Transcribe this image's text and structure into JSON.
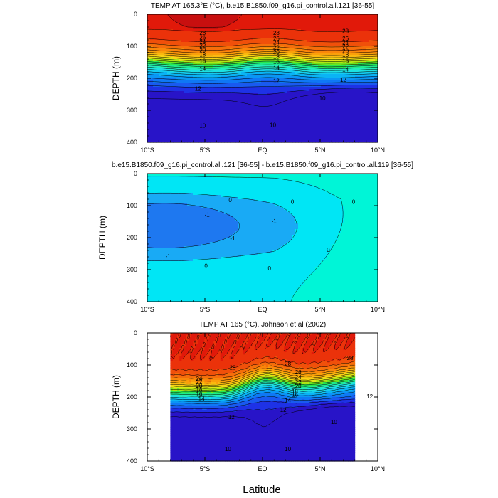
{
  "figure": {
    "xlabel": "Latitude"
  },
  "chart_data": [
    {
      "type": "heatmap",
      "title": "TEMP AT 165.3°E (°C), b.e15.B1850.f09_g16.pi_control.all.121 [36-55]",
      "xlabel": "",
      "ylabel": "DEPTH (m)",
      "x_ticks": [
        "10°S",
        "5°S",
        "EQ",
        "5°N",
        "10°N"
      ],
      "x_tick_values": [
        -10,
        -5,
        0,
        5,
        10
      ],
      "y_ticks": [
        "0",
        "100",
        "200",
        "300",
        "400"
      ],
      "y_tick_values": [
        0,
        100,
        200,
        300,
        400
      ],
      "xlim": [
        -10,
        10
      ],
      "ylim": [
        0,
        400
      ],
      "y_inverted": true,
      "data_extent": [
        -10,
        10
      ],
      "contour_levels": [
        8,
        9,
        10,
        11,
        12,
        13,
        14,
        15,
        16,
        17,
        18,
        19,
        20,
        21,
        22,
        23,
        24,
        25,
        26,
        27,
        28,
        29,
        30
      ],
      "contour_labels": [
        {
          "text": "28",
          "x": -5.2,
          "y": 58
        },
        {
          "text": "26",
          "x": -5.2,
          "y": 72
        },
        {
          "text": "24",
          "x": -5.2,
          "y": 85
        },
        {
          "text": "22",
          "x": -5.2,
          "y": 98
        },
        {
          "text": "20",
          "x": -5.2,
          "y": 112
        },
        {
          "text": "18",
          "x": -5.2,
          "y": 126
        },
        {
          "text": "16",
          "x": -5.2,
          "y": 145
        },
        {
          "text": "14",
          "x": -5.2,
          "y": 170
        },
        {
          "text": "12",
          "x": -5.6,
          "y": 232
        },
        {
          "text": "10",
          "x": -5.2,
          "y": 348
        },
        {
          "text": "28",
          "x": 1.2,
          "y": 58
        },
        {
          "text": "26",
          "x": 1.2,
          "y": 75
        },
        {
          "text": "24",
          "x": 1.2,
          "y": 88
        },
        {
          "text": "22",
          "x": 1.2,
          "y": 103
        },
        {
          "text": "20",
          "x": 1.2,
          "y": 118
        },
        {
          "text": "18",
          "x": 1.2,
          "y": 132
        },
        {
          "text": "16",
          "x": 1.2,
          "y": 148
        },
        {
          "text": "14",
          "x": 1.2,
          "y": 168
        },
        {
          "text": "12",
          "x": 1.2,
          "y": 208
        },
        {
          "text": "10",
          "x": 0.9,
          "y": 346
        },
        {
          "text": "28",
          "x": 7.2,
          "y": 52
        },
        {
          "text": "26",
          "x": 7.2,
          "y": 75
        },
        {
          "text": "24",
          "x": 7.2,
          "y": 88
        },
        {
          "text": "22",
          "x": 7.2,
          "y": 100
        },
        {
          "text": "20",
          "x": 7.2,
          "y": 114
        },
        {
          "text": "18",
          "x": 7.2,
          "y": 127
        },
        {
          "text": "16",
          "x": 7.2,
          "y": 145
        },
        {
          "text": "14",
          "x": 7.2,
          "y": 172
        },
        {
          "text": "12",
          "x": 7.0,
          "y": 205
        },
        {
          "text": "10",
          "x": 5.2,
          "y": 262
        }
      ]
    },
    {
      "type": "heatmap",
      "title": "b.e15.B1850.f09_g16.pi_control.all.121 [36-55] - b.e15.B1850.f09_g16.pi_control.all.119 [36-55]",
      "xlabel": "",
      "ylabel": "DEPTH (m)",
      "x_ticks": [
        "10°S",
        "5°S",
        "EQ",
        "5°N",
        "10°N"
      ],
      "x_tick_values": [
        -10,
        -5,
        0,
        5,
        10
      ],
      "y_ticks": [
        "0",
        "100",
        "200",
        "300",
        "400"
      ],
      "y_tick_values": [
        0,
        100,
        200,
        300,
        400
      ],
      "xlim": [
        -10,
        10
      ],
      "ylim": [
        0,
        400
      ],
      "y_inverted": true,
      "data_extent": [
        -10,
        10
      ],
      "contour_levels": [
        -2,
        -1,
        0,
        1
      ],
      "contour_labels": [
        {
          "text": "0",
          "x": -2.8,
          "y": 82
        },
        {
          "text": "0",
          "x": 2.6,
          "y": 88
        },
        {
          "text": "0",
          "x": 7.9,
          "y": 88
        },
        {
          "text": "-1",
          "x": -4.8,
          "y": 128
        },
        {
          "text": "-1",
          "x": 1.0,
          "y": 148
        },
        {
          "text": "-1",
          "x": -2.6,
          "y": 202
        },
        {
          "text": "-1",
          "x": -8.2,
          "y": 258
        },
        {
          "text": "0",
          "x": -4.9,
          "y": 288
        },
        {
          "text": "0",
          "x": 0.6,
          "y": 296
        },
        {
          "text": "0",
          "x": 5.7,
          "y": 238
        }
      ]
    },
    {
      "type": "heatmap",
      "title": "TEMP AT 165 (°C), Johnson et al (2002)",
      "xlabel": "Latitude",
      "ylabel": "DEPTH (m)",
      "x_ticks": [
        "10°S",
        "5°S",
        "EQ",
        "5°N",
        "10°N"
      ],
      "x_tick_values": [
        -10,
        -5,
        0,
        5,
        10
      ],
      "y_ticks": [
        "0",
        "100",
        "200",
        "300",
        "400"
      ],
      "y_tick_values": [
        0,
        100,
        200,
        300,
        400
      ],
      "xlim": [
        -10,
        10
      ],
      "ylim": [
        0,
        400
      ],
      "y_inverted": true,
      "data_extent": [
        -8,
        8
      ],
      "contour_levels": [
        8,
        9,
        10,
        11,
        12,
        13,
        14,
        15,
        16,
        17,
        18,
        19,
        20,
        21,
        22,
        23,
        24,
        25,
        26,
        27,
        28,
        29,
        30
      ],
      "contour_labels": [
        {
          "text": "28",
          "x": -2.6,
          "y": 108
        },
        {
          "text": "28",
          "x": 2.2,
          "y": 95
        },
        {
          "text": "28",
          "x": 7.6,
          "y": 78
        },
        {
          "text": "26",
          "x": 3.1,
          "y": 122
        },
        {
          "text": "24",
          "x": -5.5,
          "y": 142
        },
        {
          "text": "22",
          "x": -5.5,
          "y": 152
        },
        {
          "text": "20",
          "x": -5.5,
          "y": 164
        },
        {
          "text": "18",
          "x": -5.5,
          "y": 176
        },
        {
          "text": "16",
          "x": -5.5,
          "y": 190
        },
        {
          "text": "14",
          "x": -5.3,
          "y": 206
        },
        {
          "text": "24",
          "x": 3.1,
          "y": 138
        },
        {
          "text": "22",
          "x": 3.1,
          "y": 153
        },
        {
          "text": "20",
          "x": 3.1,
          "y": 166
        },
        {
          "text": "18",
          "x": 2.8,
          "y": 182
        },
        {
          "text": "16",
          "x": 2.8,
          "y": 192
        },
        {
          "text": "14",
          "x": 2.2,
          "y": 210
        },
        {
          "text": "12",
          "x": 1.8,
          "y": 240
        },
        {
          "text": "12",
          "x": -2.7,
          "y": 262
        },
        {
          "text": "12",
          "x": 9.3,
          "y": 198
        },
        {
          "text": "10",
          "x": 6.2,
          "y": 278
        },
        {
          "text": "10",
          "x": -3.0,
          "y": 362
        },
        {
          "text": "10",
          "x": 2.2,
          "y": 362
        }
      ]
    }
  ]
}
